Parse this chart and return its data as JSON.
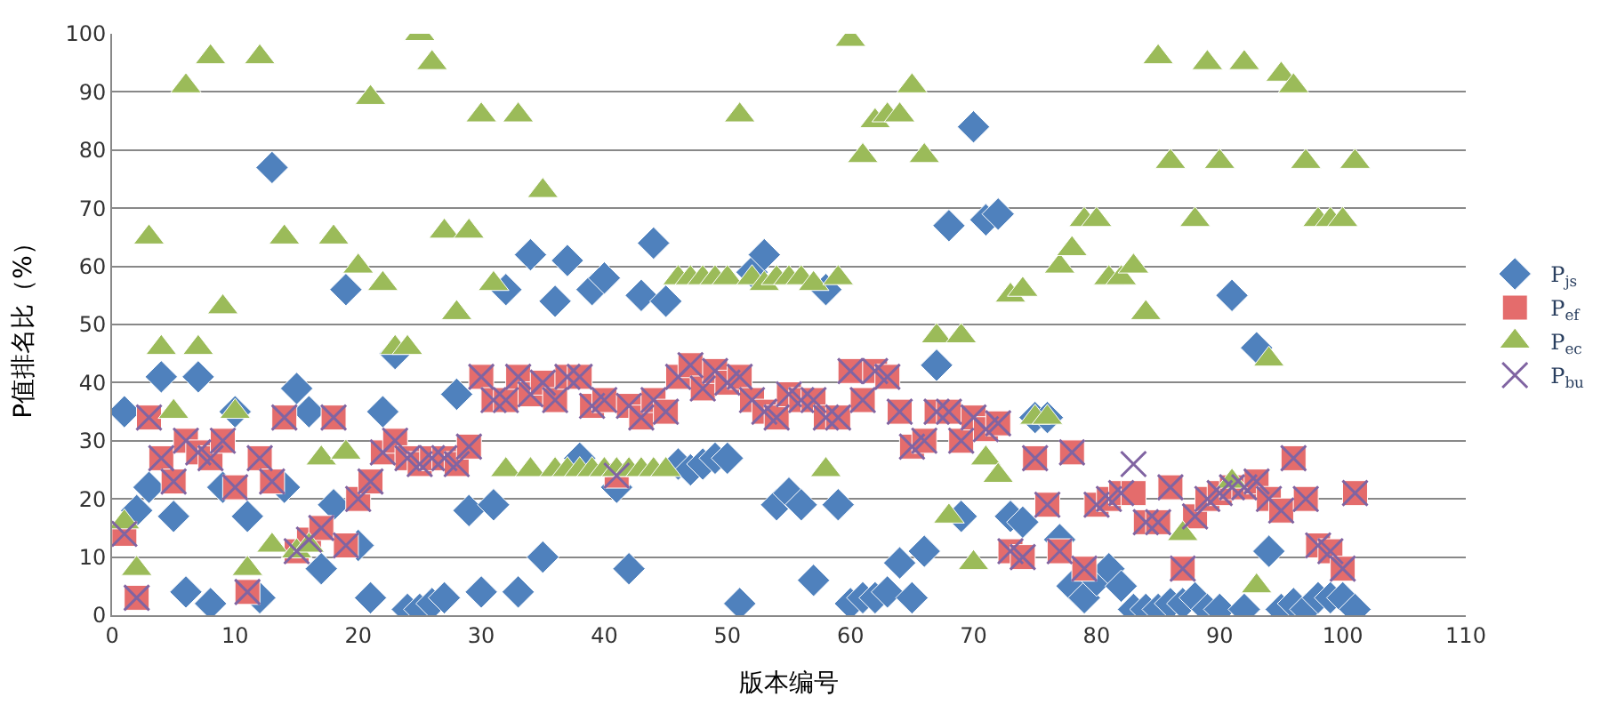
{
  "chart_data": {
    "type": "scatter",
    "xlabel": "版本编号",
    "ylabel": "P值排名比（%）",
    "x": [
      1,
      2,
      3,
      4,
      5,
      6,
      7,
      8,
      9,
      10,
      11,
      12,
      13,
      14,
      15,
      16,
      17,
      18,
      19,
      20,
      21,
      22,
      23,
      24,
      25,
      26,
      27,
      28,
      29,
      30,
      31,
      32,
      33,
      34,
      35,
      36,
      37,
      38,
      39,
      40,
      41,
      42,
      43,
      44,
      45,
      46,
      47,
      48,
      49,
      50,
      51,
      52,
      53,
      54,
      55,
      56,
      57,
      58,
      59,
      60,
      61,
      62,
      63,
      64,
      65,
      66,
      67,
      68,
      69,
      70,
      71,
      72,
      73,
      74,
      75,
      76,
      77,
      78,
      79,
      80,
      81,
      82,
      83,
      84,
      85,
      86,
      87,
      88,
      89,
      90,
      91,
      92,
      93,
      94,
      95,
      96,
      97,
      98,
      99,
      100,
      101
    ],
    "series": [
      {
        "name": "P$_{js}$",
        "color": "#4f81bd",
        "marker": "diamond",
        "values": [
          35,
          18,
          22,
          41,
          17,
          4,
          41,
          2,
          22,
          35,
          17,
          3,
          77,
          22,
          39,
          35,
          8,
          19,
          56,
          12,
          3,
          35,
          45,
          1,
          1,
          2,
          3,
          38,
          18,
          4,
          19,
          56,
          4,
          62,
          10,
          54,
          61,
          27,
          56,
          58,
          22,
          8,
          55,
          64,
          54,
          26,
          25,
          26,
          27,
          27,
          2,
          59,
          62,
          19,
          21,
          19,
          6,
          56,
          19,
          2,
          3,
          3,
          4,
          9,
          3,
          11,
          43,
          67,
          17,
          84,
          68,
          69,
          17,
          16,
          34,
          34,
          13,
          5,
          3,
          6,
          8,
          5,
          1,
          1,
          1,
          2,
          2,
          3,
          1,
          1,
          55,
          1,
          46,
          11,
          1,
          2,
          1,
          3,
          3,
          3,
          1
        ]
      },
      {
        "name": "P$_{ef}$",
        "color": "#e46c6c",
        "marker": "square",
        "values": [
          14,
          3,
          34,
          27,
          23,
          30,
          28,
          27,
          30,
          22,
          4,
          27,
          23,
          34,
          11,
          13,
          15,
          34,
          12,
          20,
          23,
          28,
          30,
          27,
          26,
          27,
          27,
          26,
          29,
          41,
          37,
          37,
          41,
          38,
          40,
          37,
          41,
          41,
          36,
          37,
          24,
          36,
          34,
          37,
          35,
          41,
          43,
          39,
          42,
          40,
          41,
          37,
          35,
          34,
          38,
          37,
          37,
          34,
          34,
          42,
          37,
          42,
          41,
          35,
          29,
          30,
          35,
          35,
          30,
          34,
          32,
          33,
          11,
          10,
          27,
          19,
          11,
          28,
          8,
          19,
          20,
          21,
          21,
          16,
          16,
          22,
          8,
          17,
          20,
          21,
          22,
          22,
          23,
          20,
          18,
          27,
          20,
          12,
          11,
          8,
          21
        ]
      },
      {
        "name": "P$_{ec}$",
        "color": "#9bbb59",
        "marker": "triangle",
        "values": [
          16,
          8,
          65,
          46,
          35,
          91,
          46,
          96,
          53,
          35,
          8,
          96,
          12,
          65,
          11,
          12,
          27,
          65,
          28,
          60,
          89,
          57,
          46,
          46,
          100,
          95,
          66,
          52,
          66,
          86,
          57,
          25,
          86,
          25,
          73,
          25,
          25,
          25,
          25,
          25,
          25,
          25,
          25,
          25,
          25,
          58,
          58,
          58,
          58,
          58,
          86,
          58,
          57,
          58,
          58,
          58,
          57,
          25,
          58,
          99,
          79,
          85,
          86,
          86,
          91,
          79,
          48,
          17,
          48,
          9,
          27,
          24,
          55,
          56,
          34,
          34,
          60,
          63,
          68,
          68,
          58,
          58,
          60,
          52,
          96,
          78,
          14,
          68,
          95,
          78,
          23,
          95,
          5,
          44,
          93,
          91,
          78,
          68,
          68,
          68,
          78
        ]
      },
      {
        "name": "P$_{bu}$",
        "color": "#8064a2",
        "marker": "cross",
        "values": [
          14,
          3,
          34,
          27,
          23,
          30,
          28,
          27,
          30,
          22,
          4,
          27,
          23,
          34,
          11,
          13,
          15,
          34,
          12,
          20,
          23,
          28,
          30,
          27,
          26,
          27,
          27,
          26,
          29,
          41,
          37,
          37,
          41,
          38,
          40,
          37,
          41,
          41,
          36,
          37,
          24,
          36,
          34,
          37,
          35,
          41,
          43,
          39,
          42,
          40,
          41,
          37,
          35,
          34,
          38,
          37,
          37,
          34,
          34,
          42,
          37,
          42,
          41,
          35,
          29,
          30,
          35,
          35,
          30,
          34,
          32,
          33,
          11,
          10,
          27,
          19,
          11,
          28,
          8,
          19,
          20,
          21,
          26,
          16,
          16,
          22,
          8,
          17,
          20,
          21,
          22,
          22,
          23,
          20,
          18,
          27,
          20,
          12,
          11,
          8,
          21
        ]
      }
    ],
    "xlim": [
      0,
      110
    ],
    "xticks": [
      0,
      10,
      20,
      30,
      40,
      50,
      60,
      70,
      80,
      90,
      100,
      110
    ],
    "ylim": [
      0,
      100
    ],
    "yticks": [
      0,
      10,
      20,
      30,
      40,
      50,
      60,
      70,
      80,
      90,
      100
    ],
    "grid": "y",
    "legend": "right"
  }
}
